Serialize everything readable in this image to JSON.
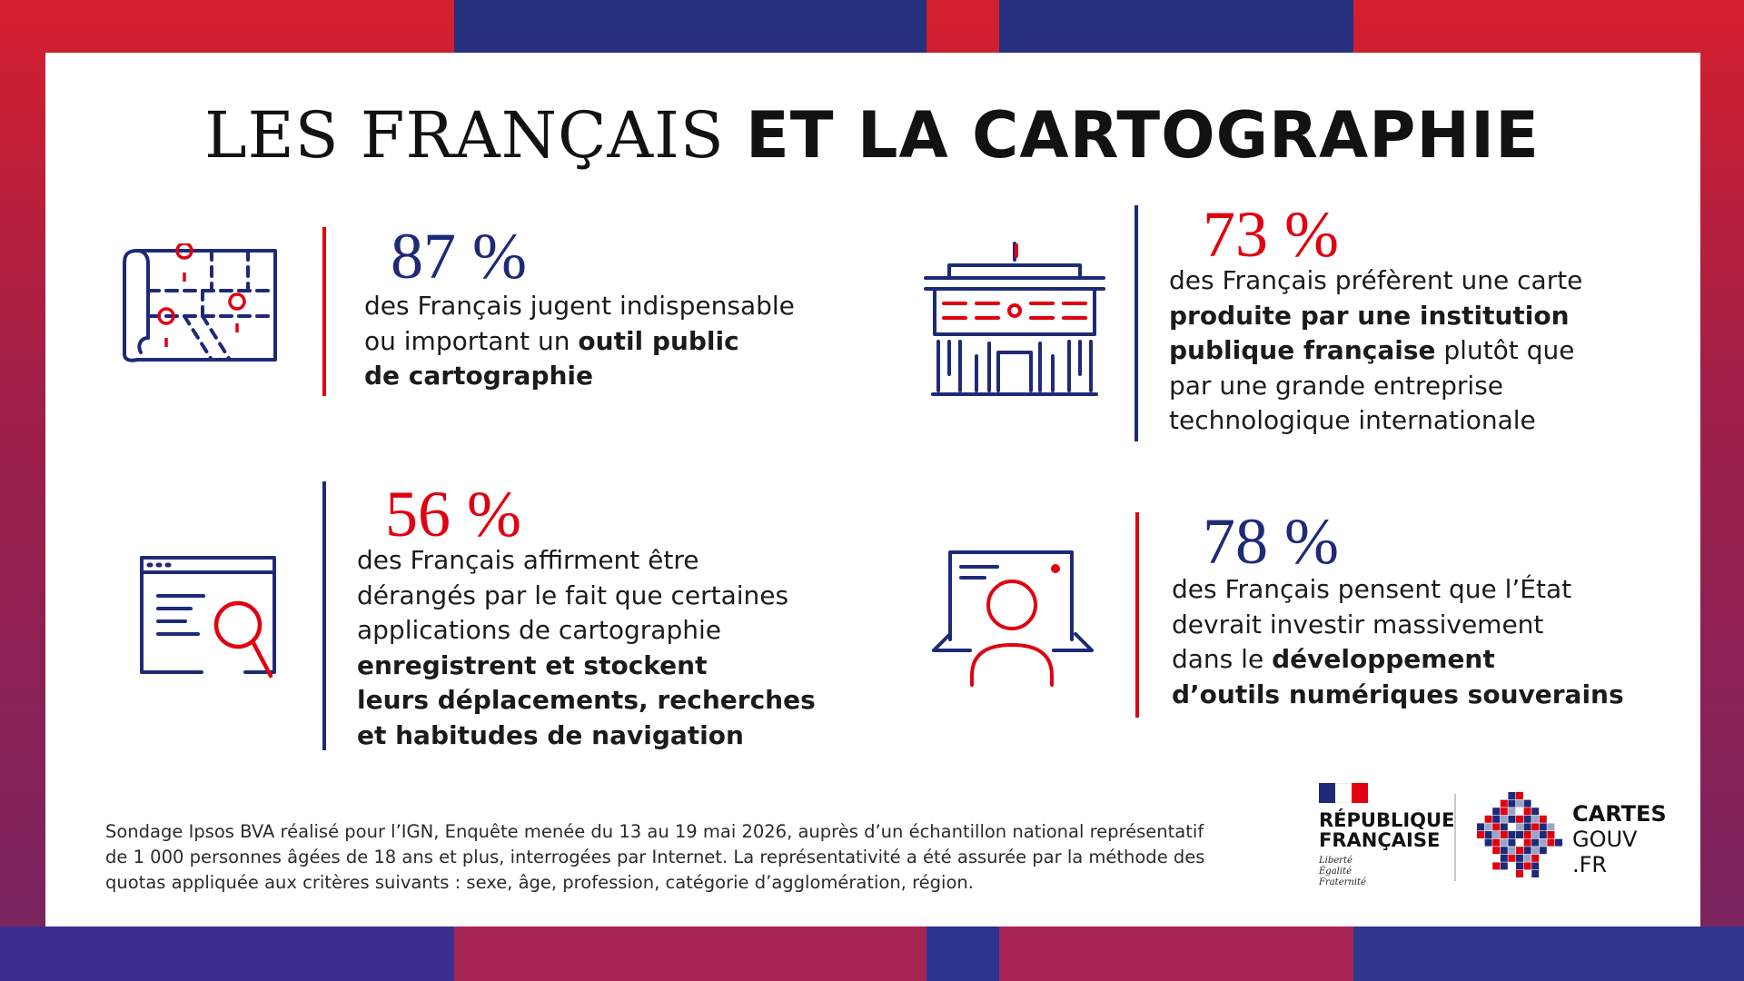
{
  "title": {
    "part_light": "LES FRANÇAIS",
    "part_bold": "ET LA CARTOGRAPHIE"
  },
  "stats": [
    {
      "value": "87 %",
      "lines": [
        [
          {
            "t": "des Français jugent indispensable",
            "b": false
          }
        ],
        [
          {
            "t": "ou important un ",
            "b": false
          },
          {
            "t": "outil public",
            "b": true
          }
        ],
        [
          {
            "t": "de cartographie",
            "b": true
          }
        ]
      ]
    },
    {
      "value": "73 %",
      "lines": [
        [
          {
            "t": "des Français préfèrent une carte",
            "b": false
          }
        ],
        [
          {
            "t": "produite par une institution",
            "b": true
          }
        ],
        [
          {
            "t": "publique française",
            "b": true
          },
          {
            "t": " plutôt que",
            "b": false
          }
        ],
        [
          {
            "t": "par une grande entreprise",
            "b": false
          }
        ],
        [
          {
            "t": "technologique internationale",
            "b": false
          }
        ]
      ]
    },
    {
      "value": "56 %",
      "lines": [
        [
          {
            "t": "des Français affirment être",
            "b": false
          }
        ],
        [
          {
            "t": "dérangés par le fait que certaines",
            "b": false
          }
        ],
        [
          {
            "t": "applications de cartographie",
            "b": false
          }
        ],
        [
          {
            "t": "enregistrent et stockent",
            "b": true
          }
        ],
        [
          {
            "t": "leurs déplacements, recherches",
            "b": true
          }
        ],
        [
          {
            "t": "et habitudes de navigation",
            "b": true
          }
        ]
      ]
    },
    {
      "value": "78 %",
      "lines": [
        [
          {
            "t": "des Français pensent que l’État",
            "b": false
          }
        ],
        [
          {
            "t": "devrait investir massivement",
            "b": false
          }
        ],
        [
          {
            "t": "dans le ",
            "b": false
          },
          {
            "t": "développement",
            "b": true
          }
        ],
        [
          {
            "t": "d’outils numériques souverains",
            "b": true
          }
        ]
      ]
    }
  ],
  "icons": [
    "map-icon",
    "institution-building-icon",
    "browser-search-icon",
    "laptop-user-icon"
  ],
  "footnote": [
    "Sondage Ipsos BVA réalisé pour l’IGN, Enquête menée du 13 au 19 mai 2026, auprès d’un échantillon national représentatif",
    "de 1 000 personnes âgées de 18 ans et plus, interrogées par Internet. La représentativité a été assurée par la méthode des",
    "quotas appliquée aux critères suivants : sexe, âge, profession, catégorie d’agglomération, région."
  ],
  "logo_rf": {
    "name_line1": "RÉPUBLIQUE",
    "name_line2": "FRANÇAISE",
    "motto": [
      "Liberté",
      "Égalité",
      "Fraternité"
    ]
  },
  "logo_cartes": {
    "line1": "CARTES",
    "line2": "GOUV",
    "line3": ".FR"
  },
  "colors": {
    "navy": "#1e2a78",
    "red": "#e1000f",
    "frame_red": "#d51f2e",
    "frame_blue": "#26317e"
  }
}
